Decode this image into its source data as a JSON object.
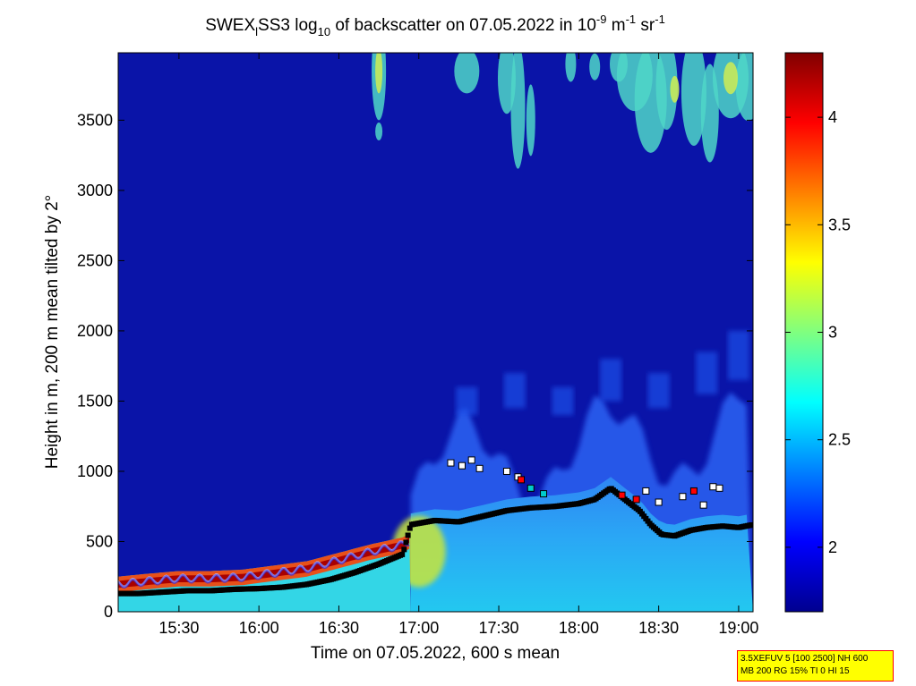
{
  "chart_data": {
    "type": "heatmap",
    "title": {
      "prefix": "SWEX",
      "sub1": "l",
      "mid1": "SS3 log",
      "sub2": "10",
      "mid2": " of backscatter on 07.05.2022 in 10",
      "sup1": "-9",
      "mid3": " m",
      "sup2": "-1",
      "mid4": " sr",
      "sup3": "-1"
    },
    "xlabel": "Time on 07.05.2022, 600 s mean",
    "ylabel": "Height in m, 200 m mean tilted by 2°",
    "x_range_hours": [
      15.12,
      19.09
    ],
    "ylim": [
      0,
      3980
    ],
    "x_ticks": [
      {
        "v": 15.5,
        "label": "15:30"
      },
      {
        "v": 16.0,
        "label": "16:00"
      },
      {
        "v": 16.5,
        "label": "16:30"
      },
      {
        "v": 17.0,
        "label": "17:00"
      },
      {
        "v": 17.5,
        "label": "17:30"
      },
      {
        "v": 18.0,
        "label": "18:00"
      },
      {
        "v": 18.5,
        "label": "18:30"
      },
      {
        "v": 19.0,
        "label": "19:00"
      }
    ],
    "y_ticks": [
      0,
      500,
      1000,
      1500,
      2000,
      2500,
      3000,
      3500
    ],
    "colorbar": {
      "range": [
        1.7,
        4.3
      ],
      "ticks": [
        {
          "v": 2,
          "label": "2"
        },
        {
          "v": 2.5,
          "label": "2.5"
        },
        {
          "v": 3,
          "label": "3"
        },
        {
          "v": 3.5,
          "label": "3.5"
        },
        {
          "v": 4,
          "label": "4"
        }
      ],
      "colormap": "jet"
    },
    "boundary_layer_height_m": [
      [
        15.12,
        130
      ],
      [
        15.25,
        130
      ],
      [
        15.4,
        140
      ],
      [
        15.55,
        150
      ],
      [
        15.7,
        150
      ],
      [
        15.85,
        160
      ],
      [
        16.0,
        165
      ],
      [
        16.15,
        175
      ],
      [
        16.3,
        195
      ],
      [
        16.45,
        230
      ],
      [
        16.6,
        280
      ],
      [
        16.75,
        340
      ],
      [
        16.9,
        410
      ],
      [
        16.95,
        620
      ],
      [
        17.1,
        650
      ],
      [
        17.25,
        640
      ],
      [
        17.4,
        680
      ],
      [
        17.55,
        720
      ],
      [
        17.7,
        740
      ],
      [
        17.85,
        750
      ],
      [
        18.0,
        770
      ],
      [
        18.1,
        800
      ],
      [
        18.2,
        880
      ],
      [
        18.3,
        790
      ],
      [
        18.38,
        720
      ],
      [
        18.45,
        620
      ],
      [
        18.52,
        550
      ],
      [
        18.6,
        540
      ],
      [
        18.7,
        580
      ],
      [
        18.8,
        600
      ],
      [
        18.9,
        610
      ],
      [
        19.0,
        600
      ],
      [
        19.09,
        620
      ]
    ],
    "aerosol_top_m": [
      [
        15.12,
        250
      ],
      [
        15.3,
        270
      ],
      [
        15.5,
        290
      ],
      [
        15.7,
        290
      ],
      [
        15.9,
        300
      ],
      [
        16.1,
        330
      ],
      [
        16.3,
        360
      ],
      [
        16.5,
        420
      ],
      [
        16.7,
        480
      ],
      [
        16.9,
        530
      ],
      [
        17.0,
        600
      ],
      [
        17.2,
        620
      ],
      [
        17.5,
        650
      ],
      [
        18.0,
        640
      ],
      [
        18.5,
        660
      ],
      [
        19.09,
        680
      ]
    ],
    "marker_points": [
      {
        "t": 17.2,
        "h": 1060,
        "c": "#ffffff"
      },
      {
        "t": 17.27,
        "h": 1040,
        "c": "#ffffff"
      },
      {
        "t": 17.33,
        "h": 1080,
        "c": "#ffffff"
      },
      {
        "t": 17.38,
        "h": 1020,
        "c": "#ffffff"
      },
      {
        "t": 17.55,
        "h": 1000,
        "c": "#ffffff"
      },
      {
        "t": 17.62,
        "h": 960,
        "c": "#ffffff"
      },
      {
        "t": 17.64,
        "h": 940,
        "c": "#ff0000"
      },
      {
        "t": 17.7,
        "h": 880,
        "c": "#00cccc"
      },
      {
        "t": 17.78,
        "h": 840,
        "c": "#00cccc"
      },
      {
        "t": 18.27,
        "h": 830,
        "c": "#ff0000"
      },
      {
        "t": 18.36,
        "h": 800,
        "c": "#ff0000"
      },
      {
        "t": 18.42,
        "h": 860,
        "c": "#ffffff"
      },
      {
        "t": 18.5,
        "h": 780,
        "c": "#ffffff"
      },
      {
        "t": 18.65,
        "h": 820,
        "c": "#ffffff"
      },
      {
        "t": 18.72,
        "h": 860,
        "c": "#ff0000"
      },
      {
        "t": 18.78,
        "h": 760,
        "c": "#ffffff"
      },
      {
        "t": 18.84,
        "h": 890,
        "c": "#ffffff"
      },
      {
        "t": 18.88,
        "h": 880,
        "c": "#ffffff"
      }
    ]
  },
  "info_box": {
    "line1": "3.5XEFUV 5 [100 2500] NH 600",
    "line2": "MB 200 RG 15% TI 0 HI 15"
  }
}
